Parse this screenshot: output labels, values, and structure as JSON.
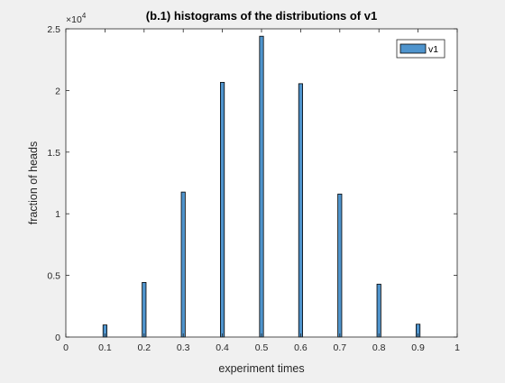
{
  "chart_data": {
    "type": "bar",
    "title": "(b.1) histograms of the distributions of v1",
    "xlabel": "experiment times",
    "ylabel": "fraction of heads",
    "xlim": [
      0,
      1
    ],
    "ylim": [
      0,
      25000
    ],
    "x_ticks": [
      0,
      0.1,
      0.2,
      0.3,
      0.4,
      0.5,
      0.6,
      0.7,
      0.8,
      0.9,
      1
    ],
    "x_tick_labels": [
      "0",
      "0.1",
      "0.2",
      "0.3",
      "0.4",
      "0.5",
      "0.6",
      "0.7",
      "0.8",
      "0.9",
      "1"
    ],
    "y_ticks": [
      0,
      5000,
      10000,
      15000,
      20000,
      25000
    ],
    "y_tick_labels": [
      "0",
      "0.5",
      "1",
      "1.5",
      "2",
      "2.5"
    ],
    "y_exponent_label": "×10",
    "y_exponent_power": "4",
    "bin_width": 0.01,
    "series": [
      {
        "name": "v1",
        "color": "#4f94cd",
        "x": [
          0.1,
          0.2,
          0.3,
          0.4,
          0.5,
          0.6,
          0.7,
          0.8,
          0.9
        ],
        "values": [
          980,
          4430,
          11760,
          20660,
          24400,
          20550,
          11600,
          4290,
          1040
        ]
      }
    ],
    "legend": {
      "position": "top-right",
      "entries": [
        "v1"
      ]
    },
    "grid": false
  }
}
